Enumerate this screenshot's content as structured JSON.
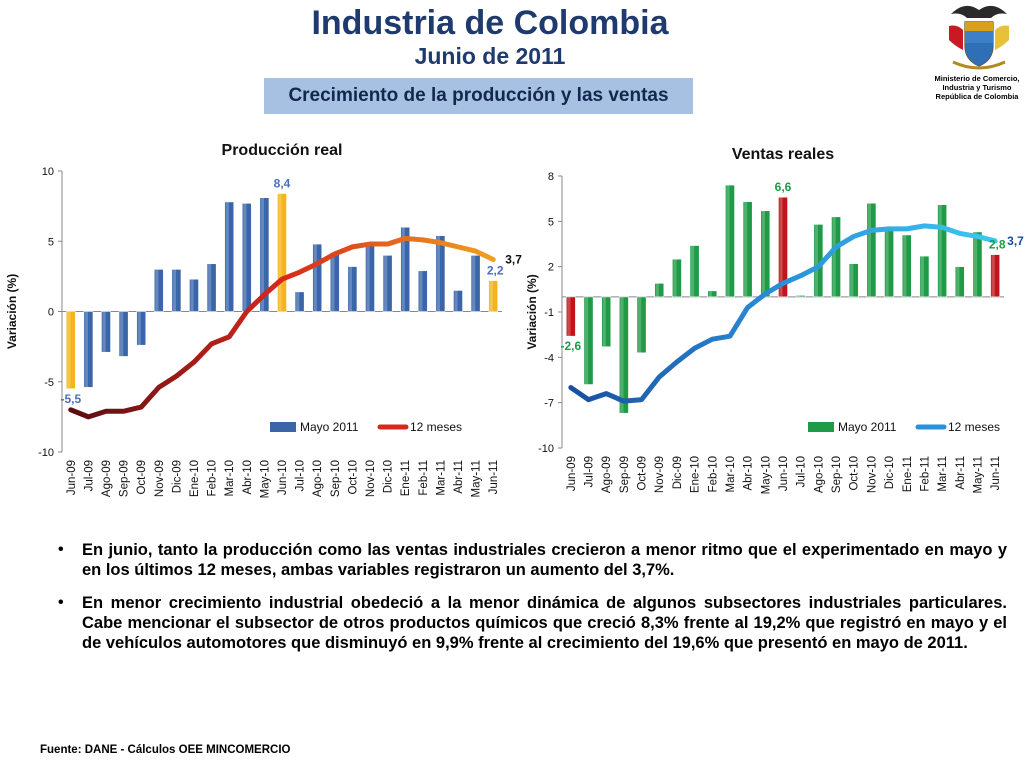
{
  "header": {
    "title": "Industria de Colombia",
    "subtitle": "Junio de 2011",
    "section": "Crecimiento de la producción y las ventas"
  },
  "ministry": [
    "Ministerio de Comercio,",
    "Industria y Turismo",
    "República de Colombia"
  ],
  "colors": {
    "title": "#1f3a6e",
    "section_bg": "#a7c1e2",
    "prod_bar": "#3a66a8",
    "prod_bar_highlight": "#f2b51c",
    "ventas_bar": "#1f9a46",
    "ventas_bar_highlight": "#c0141a",
    "prod_line": [
      "#5a0c12",
      "#d8281c",
      "#f0a020"
    ],
    "ventas_line": [
      "#1a4ea0",
      "#2a90d8",
      "#3cc8f0"
    ],
    "prod_label": "#4a6fbf",
    "ventas_label": "#1f9a46"
  },
  "chart_data": [
    {
      "type": "bar",
      "id": "produccion",
      "title": "Producción real",
      "ylabel": "Variación (%)",
      "ylim": [
        -10,
        10
      ],
      "yticks": [
        -10,
        -5,
        0,
        5,
        10
      ],
      "categories": [
        "Jun-09",
        "Jul-09",
        "Ago-09",
        "Sep-09",
        "Oct-09",
        "Nov-09",
        "Dic-09",
        "Ene-10",
        "Feb-10",
        "Mar-10",
        "Abr-10",
        "May-10",
        "Jun-10",
        "Jul-10",
        "Ago-10",
        "Sep-10",
        "Oct-10",
        "Nov-10",
        "Dic-10",
        "Ene-11",
        "Feb-11",
        "Mar-11",
        "Abr-11",
        "May-11",
        "Jun-11"
      ],
      "highlight": [
        0,
        12,
        24
      ],
      "series": [
        {
          "name": "Mayo 2011",
          "kind": "bar",
          "values": [
            -5.5,
            -5.4,
            -2.9,
            -3.2,
            -2.4,
            3.0,
            3.0,
            2.3,
            3.4,
            7.8,
            7.7,
            8.1,
            8.4,
            1.4,
            4.8,
            4.2,
            3.2,
            4.7,
            4.0,
            6.0,
            2.9,
            5.4,
            1.5,
            4.0,
            2.2
          ]
        },
        {
          "name": "12 meses",
          "kind": "line",
          "values": [
            -7.0,
            -7.5,
            -7.1,
            -7.1,
            -6.8,
            -5.4,
            -4.6,
            -3.6,
            -2.3,
            -1.8,
            0.0,
            1.2,
            2.3,
            2.8,
            3.4,
            4.1,
            4.6,
            4.8,
            4.8,
            5.2,
            5.1,
            4.9,
            4.6,
            4.3,
            3.7
          ]
        }
      ],
      "labels": [
        {
          "index": 0,
          "series": 0,
          "text": "-5,5"
        },
        {
          "index": 12,
          "series": 0,
          "text": "8,4"
        },
        {
          "index": 24,
          "series": 1,
          "text": "3,7"
        },
        {
          "index": 24,
          "series": 0,
          "text": "2,2"
        }
      ],
      "legend": "bottom-right"
    },
    {
      "type": "bar",
      "id": "ventas",
      "title": "Ventas reales",
      "ylabel": "Variación (%)",
      "ylim": [
        -10,
        8
      ],
      "yticks": [
        -10,
        -7,
        -4,
        -1,
        2,
        5,
        8
      ],
      "categories": [
        "Jun-09",
        "Jul-09",
        "Ago-09",
        "Sep-09",
        "Oct-09",
        "Nov-09",
        "Dic-09",
        "Ene-10",
        "Feb-10",
        "Mar-10",
        "Abr-10",
        "May-10",
        "Jun-10",
        "Jul-10",
        "Ago-10",
        "Sep-10",
        "Oct-10",
        "Nov-10",
        "Dic-10",
        "Ene-11",
        "Feb-11",
        "Mar-11",
        "Abr-11",
        "May-11",
        "Jun-11"
      ],
      "highlight": [
        0,
        12,
        24
      ],
      "series": [
        {
          "name": "Mayo 2011",
          "kind": "bar",
          "values": [
            -2.6,
            -5.8,
            -3.3,
            -7.7,
            -3.7,
            0.9,
            2.5,
            3.4,
            0.4,
            7.4,
            6.3,
            5.7,
            6.6,
            0.1,
            4.8,
            5.3,
            2.2,
            6.2,
            4.5,
            4.1,
            2.7,
            6.1,
            2.0,
            4.3,
            2.8
          ]
        },
        {
          "name": "12 meses",
          "kind": "line",
          "values": [
            -6.0,
            -6.8,
            -6.4,
            -6.9,
            -6.8,
            -5.3,
            -4.3,
            -3.4,
            -2.8,
            -2.6,
            -0.7,
            0.2,
            0.9,
            1.4,
            2.0,
            3.3,
            4.0,
            4.4,
            4.5,
            4.5,
            4.7,
            4.6,
            4.2,
            4.0,
            3.7
          ]
        }
      ],
      "labels": [
        {
          "index": 0,
          "series": 0,
          "text": "-2,6"
        },
        {
          "index": 12,
          "series": 0,
          "text": "6,6"
        },
        {
          "index": 24,
          "series": 1,
          "text": "3,7"
        },
        {
          "index": 24,
          "series": 0,
          "text": "2,8"
        }
      ],
      "legend": "bottom-right"
    }
  ],
  "bullets": [
    "En junio, tanto la producción como las ventas industriales crecieron a menor ritmo que el experimentado en mayo  y en los últimos 12 meses, ambas variables registraron un aumento del 3,7%.",
    "En menor crecimiento industrial obedeció a la menor dinámica de algunos subsectores industriales particulares. Cabe mencionar el subsector de otros productos químicos que creció 8,3% frente al 19,2% que registró en mayo y el de vehículos automotores que disminuyó en 9,9% frente al crecimiento del 19,6% que presentó en mayo de 2011."
  ],
  "source": "Fuente: DANE - Cálculos OEE MINCOMERCIO"
}
